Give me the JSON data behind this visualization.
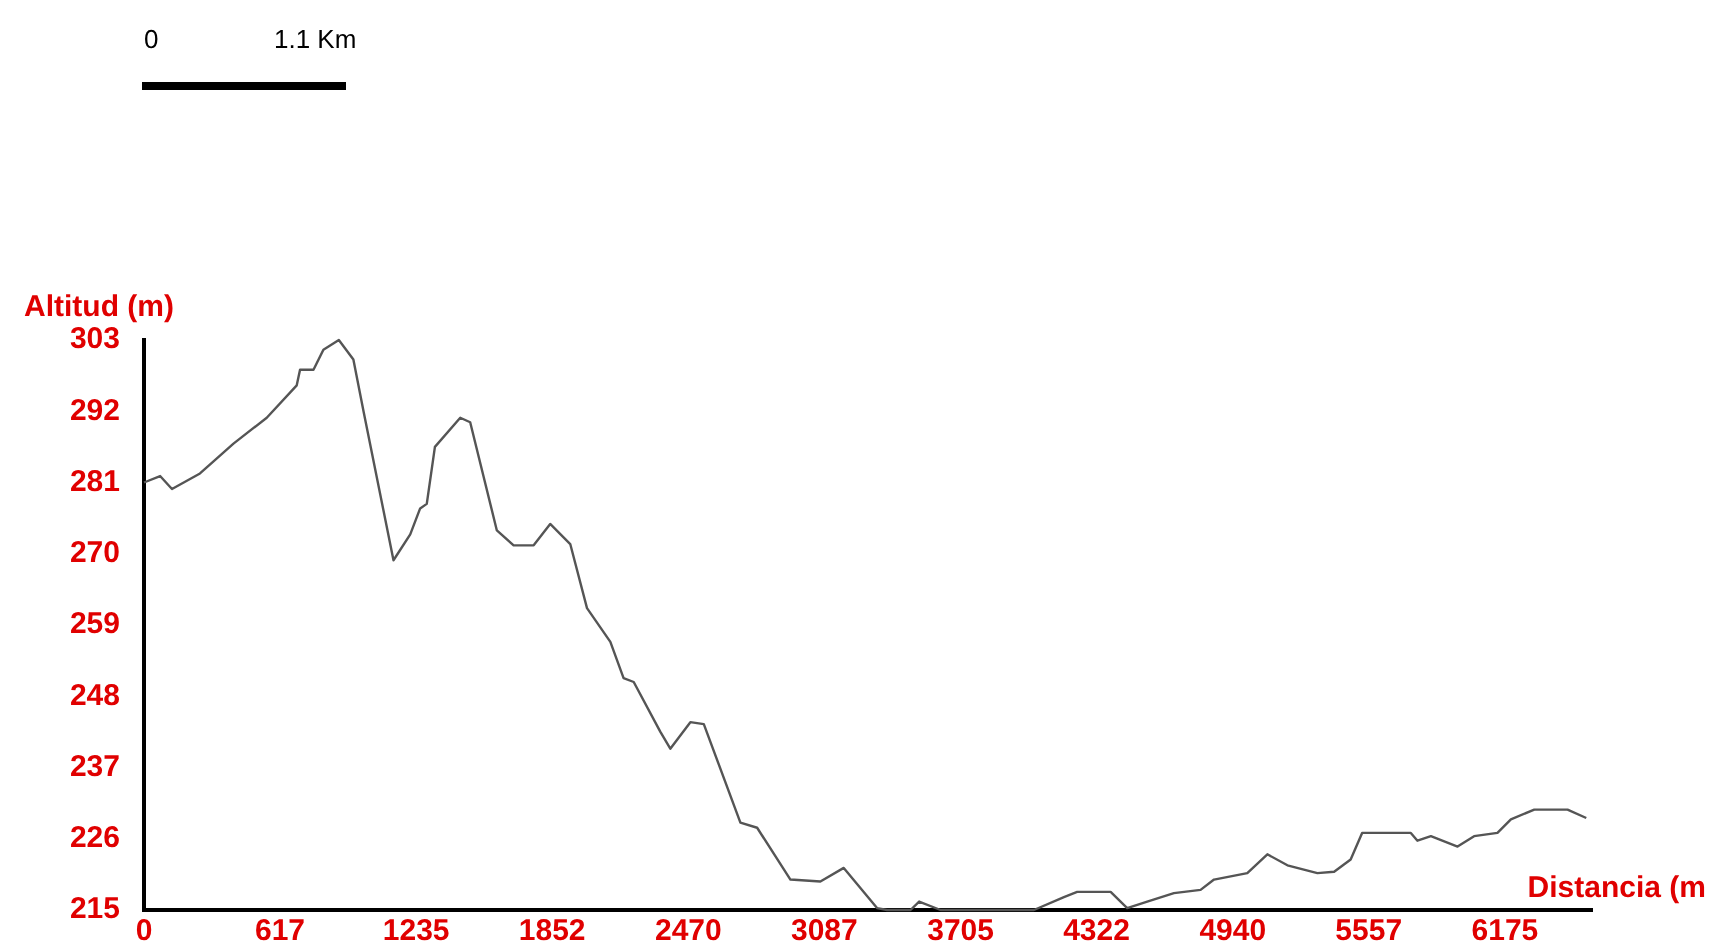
{
  "chart_data": {
    "type": "line",
    "xlabel": "Distancia (m",
    "ylabel": "Altitud (m)",
    "annotations": [
      "0",
      "1.1 Km"
    ],
    "xlim": [
      0,
      6570
    ],
    "xticks": [
      0,
      617,
      1235,
      1852,
      2470,
      3087,
      3705,
      4322,
      4940,
      5557,
      6175
    ],
    "ylim": [
      215,
      303
    ],
    "yticks": [
      215,
      226,
      237,
      248,
      259,
      270,
      281,
      292,
      303
    ],
    "grid": false,
    "legend": false,
    "marker": "none",
    "line_style": "solid",
    "series": [
      {
        "color": "#555555",
        "x": [
          0,
          73,
          127,
          254,
          406,
          557,
          693,
          708,
          769,
          814,
          884,
          950,
          996,
          1132,
          1208,
          1253,
          1283,
          1320,
          1435,
          1480,
          1601,
          1677,
          1768,
          1843,
          1934,
          2010,
          2116,
          2176,
          2222,
          2343,
          2388,
          2479,
          2540,
          2706,
          2782,
          2933,
          3069,
          3175,
          3326,
          3372,
          3478,
          3517,
          3614,
          4038,
          4174,
          4234,
          4386,
          4461,
          4552,
          4673,
          4794,
          4855,
          5006,
          5097,
          5188,
          5324,
          5400,
          5475,
          5527,
          5748,
          5778,
          5839,
          5960,
          6035,
          6141,
          6202,
          6308,
          6459,
          6544
        ],
        "values": [
          281,
          282,
          280,
          282.4,
          287,
          291,
          296,
          298.4,
          298.4,
          301.5,
          303,
          300,
          292,
          269,
          273,
          277,
          277.7,
          286.5,
          291,
          290.3,
          273.6,
          271.3,
          271.3,
          274.6,
          271.5,
          261.6,
          256.4,
          250.8,
          250.2,
          242.5,
          239.9,
          244,
          243.7,
          228.5,
          227.7,
          219.7,
          219.4,
          221.5,
          215.3,
          215,
          215,
          216.3,
          215,
          215,
          217,
          217.8,
          217.8,
          215.3,
          216.3,
          217.6,
          218.1,
          219.7,
          220.7,
          223.6,
          221.9,
          220.7,
          220.9,
          222.8,
          226.9,
          226.9,
          225.7,
          226.4,
          224.8,
          226.4,
          226.9,
          229,
          230.5,
          230.5,
          229.2
        ]
      }
    ]
  }
}
